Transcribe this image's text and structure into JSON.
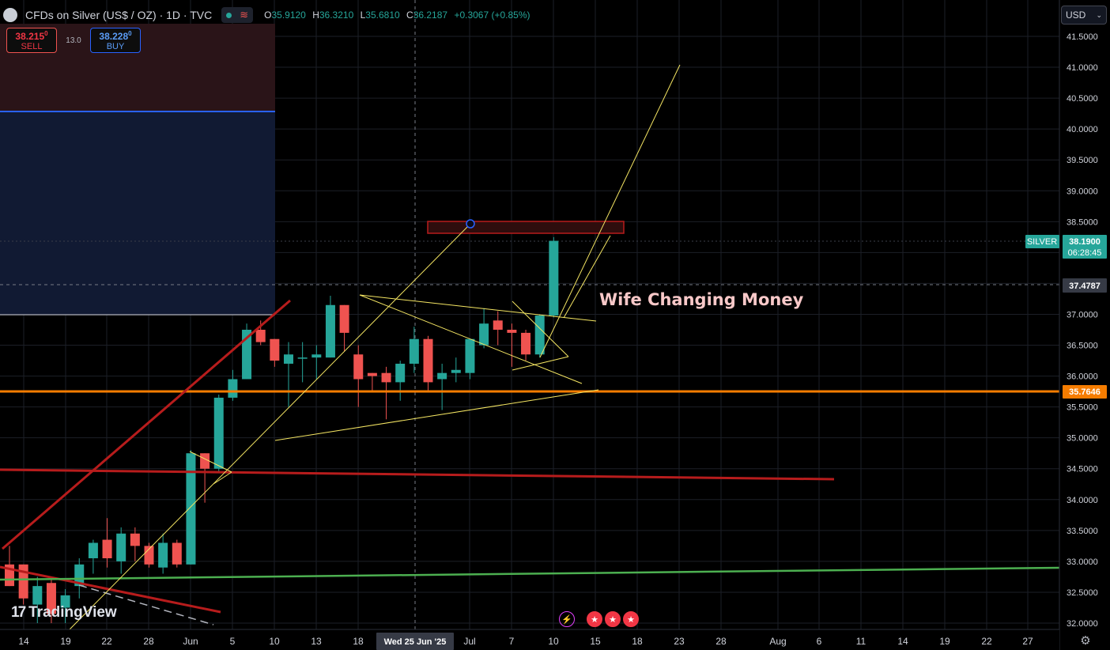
{
  "header": {
    "symbol_title": "CFDs on Silver (US$ / OZ) · 1D · TVC",
    "ohlc": [
      {
        "k": "O",
        "v": "35.9120"
      },
      {
        "k": "H",
        "v": "36.3210"
      },
      {
        "k": "L",
        "v": "35.6810"
      },
      {
        "k": "C",
        "v": "36.2187"
      }
    ],
    "change": "+0.3067 (+0.85%)"
  },
  "trade": {
    "sell_price": "38.215",
    "sell_sup": "0",
    "sell_label": "SELL",
    "spread": "13.0",
    "buy_price": "38.228",
    "buy_sup": "0",
    "buy_label": "BUY"
  },
  "currency": "USD",
  "annotation": "Wife Changing Money",
  "price_labels": {
    "symbol_tag": "SILVER",
    "last_price": "38.1900",
    "countdown": "06:28:45",
    "crosshair_price": "37.4787",
    "support_price": "35.7646"
  },
  "crosshair_date": "Wed 25 Jun '25",
  "branding": "TradingView",
  "colors": {
    "up": "#26a69a",
    "down": "#ef5350",
    "support_line": "#f57c00",
    "resistance_line": "#b71c1c",
    "trend_green": "#4caf50",
    "drawing_yellow": "#f5e663",
    "annotation_text": "#f8c8c8"
  },
  "chart_data": {
    "type": "candlestick",
    "y_ticks": [
      "41.5000",
      "41.0000",
      "40.5000",
      "40.0000",
      "39.5000",
      "39.0000",
      "38.5000",
      "38.0000",
      "37.5000",
      "37.0000",
      "36.5000",
      "36.0000",
      "35.5000",
      "35.0000",
      "34.5000",
      "34.0000",
      "33.5000",
      "33.0000",
      "32.5000",
      "32.0000"
    ],
    "x_ticks": [
      "14",
      "19",
      "22",
      "28",
      "Jun",
      "5",
      "10",
      "13",
      "18",
      "Jul",
      "7",
      "10",
      "15",
      "18",
      "23",
      "28",
      "Aug",
      "6",
      "11",
      "14",
      "19",
      "22",
      "27"
    ],
    "ylim": [
      31.95,
      41.75
    ],
    "candles": [
      {
        "o": 32.95,
        "h": 33.25,
        "l": 32.6,
        "c": 32.6
      },
      {
        "o": 32.95,
        "h": 32.95,
        "l": 32.3,
        "c": 32.4
      },
      {
        "o": 32.3,
        "h": 32.75,
        "l": 32.0,
        "c": 32.6
      },
      {
        "o": 32.65,
        "h": 32.75,
        "l": 32.0,
        "c": 32.15
      },
      {
        "o": 32.25,
        "h": 32.55,
        "l": 32.0,
        "c": 32.45
      },
      {
        "o": 32.6,
        "h": 33.05,
        "l": 32.4,
        "c": 32.95
      },
      {
        "o": 33.05,
        "h": 33.35,
        "l": 32.8,
        "c": 33.3
      },
      {
        "o": 33.35,
        "h": 33.7,
        "l": 32.9,
        "c": 33.05
      },
      {
        "o": 33.0,
        "h": 33.55,
        "l": 32.8,
        "c": 33.45
      },
      {
        "o": 33.45,
        "h": 33.55,
        "l": 33.0,
        "c": 33.25
      },
      {
        "o": 33.25,
        "h": 33.3,
        "l": 32.9,
        "c": 32.95
      },
      {
        "o": 32.9,
        "h": 33.45,
        "l": 32.8,
        "c": 33.3
      },
      {
        "o": 33.3,
        "h": 33.35,
        "l": 32.9,
        "c": 32.95
      },
      {
        "o": 32.95,
        "h": 34.8,
        "l": 32.95,
        "c": 34.75
      },
      {
        "o": 34.75,
        "h": 34.75,
        "l": 33.95,
        "c": 34.5
      },
      {
        "o": 34.5,
        "h": 35.7,
        "l": 34.45,
        "c": 35.65
      },
      {
        "o": 35.65,
        "h": 36.1,
        "l": 35.6,
        "c": 35.95
      },
      {
        "o": 35.95,
        "h": 36.85,
        "l": 35.95,
        "c": 36.75
      },
      {
        "o": 36.75,
        "h": 36.9,
        "l": 36.5,
        "c": 36.55
      },
      {
        "o": 36.6,
        "h": 36.6,
        "l": 36.15,
        "c": 36.25
      },
      {
        "o": 36.2,
        "h": 36.55,
        "l": 35.5,
        "c": 36.35
      },
      {
        "o": 36.3,
        "h": 36.55,
        "l": 35.9,
        "c": 36.3
      },
      {
        "o": 36.3,
        "h": 36.5,
        "l": 35.95,
        "c": 36.35
      },
      {
        "o": 36.3,
        "h": 37.3,
        "l": 36.3,
        "c": 37.15
      },
      {
        "o": 37.15,
        "h": 37.15,
        "l": 36.4,
        "c": 36.7
      },
      {
        "o": 36.35,
        "h": 36.5,
        "l": 35.5,
        "c": 35.95
      },
      {
        "o": 36.05,
        "h": 36.05,
        "l": 35.75,
        "c": 36.0
      },
      {
        "o": 36.05,
        "h": 36.15,
        "l": 35.3,
        "c": 35.9
      },
      {
        "o": 35.9,
        "h": 36.25,
        "l": 35.6,
        "c": 36.2
      },
      {
        "o": 36.2,
        "h": 36.8,
        "l": 36.05,
        "c": 36.6
      },
      {
        "o": 36.6,
        "h": 36.65,
        "l": 35.75,
        "c": 35.9
      },
      {
        "o": 35.95,
        "h": 36.2,
        "l": 35.45,
        "c": 36.05
      },
      {
        "o": 36.05,
        "h": 36.3,
        "l": 35.9,
        "c": 36.1
      },
      {
        "o": 36.05,
        "h": 36.6,
        "l": 35.95,
        "c": 36.6
      },
      {
        "o": 36.5,
        "h": 37.1,
        "l": 36.45,
        "c": 36.85
      },
      {
        "o": 36.9,
        "h": 37.05,
        "l": 36.5,
        "c": 36.75
      },
      {
        "o": 36.75,
        "h": 36.85,
        "l": 36.15,
        "c": 36.7
      },
      {
        "o": 36.7,
        "h": 36.75,
        "l": 36.25,
        "c": 36.35
      },
      {
        "o": 36.35,
        "h": 37.0,
        "l": 36.3,
        "c": 36.98
      },
      {
        "o": 36.98,
        "h": 38.25,
        "l": 36.95,
        "c": 38.19
      }
    ]
  }
}
